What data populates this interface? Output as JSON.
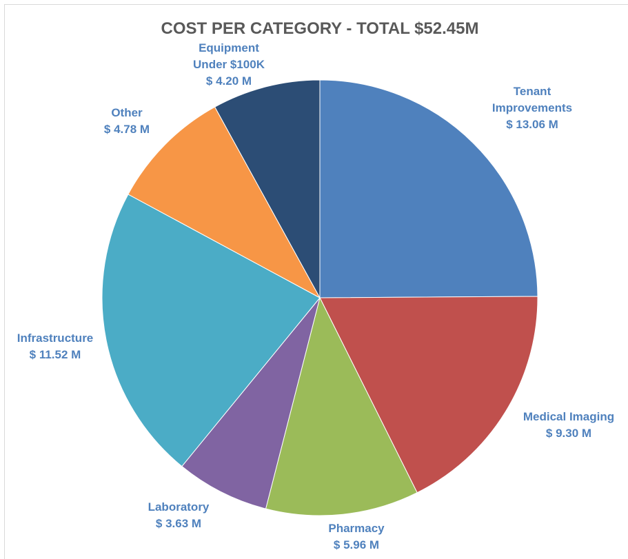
{
  "chart_data": {
    "type": "pie",
    "title": "COST PER CATEGORY - TOTAL $52.45M",
    "slices": [
      {
        "name": "Tenant Improvements",
        "label_lines": [
          "Tenant",
          "Improvements"
        ],
        "value": 13.06,
        "value_label": "$ 13.06 M",
        "color": "#4f81bd"
      },
      {
        "name": "Medical Imaging",
        "label_lines": [
          "Medical Imaging"
        ],
        "value": 9.3,
        "value_label": "$ 9.30 M",
        "color": "#c0504d"
      },
      {
        "name": "Pharmacy",
        "label_lines": [
          "Pharmacy"
        ],
        "value": 5.96,
        "value_label": "$ 5.96 M",
        "color": "#9bbb59"
      },
      {
        "name": "Laboratory",
        "label_lines": [
          "Laboratory"
        ],
        "value": 3.63,
        "value_label": "$ 3.63 M",
        "color": "#8064a2"
      },
      {
        "name": "Infrastructure",
        "label_lines": [
          "Infrastructure"
        ],
        "value": 11.52,
        "value_label": "$ 11.52 M",
        "color": "#4bacc6"
      },
      {
        "name": "Other",
        "label_lines": [
          "Other"
        ],
        "value": 4.78,
        "value_label": "$ 4.78 M",
        "color": "#f79646"
      },
      {
        "name": "Equipment Under $100K",
        "label_lines": [
          "Equipment",
          "Under $100K"
        ],
        "value": 4.2,
        "value_label": "$ 4.20 M",
        "color": "#2c4d75"
      }
    ],
    "legend": "none",
    "data_labels": "outside"
  }
}
